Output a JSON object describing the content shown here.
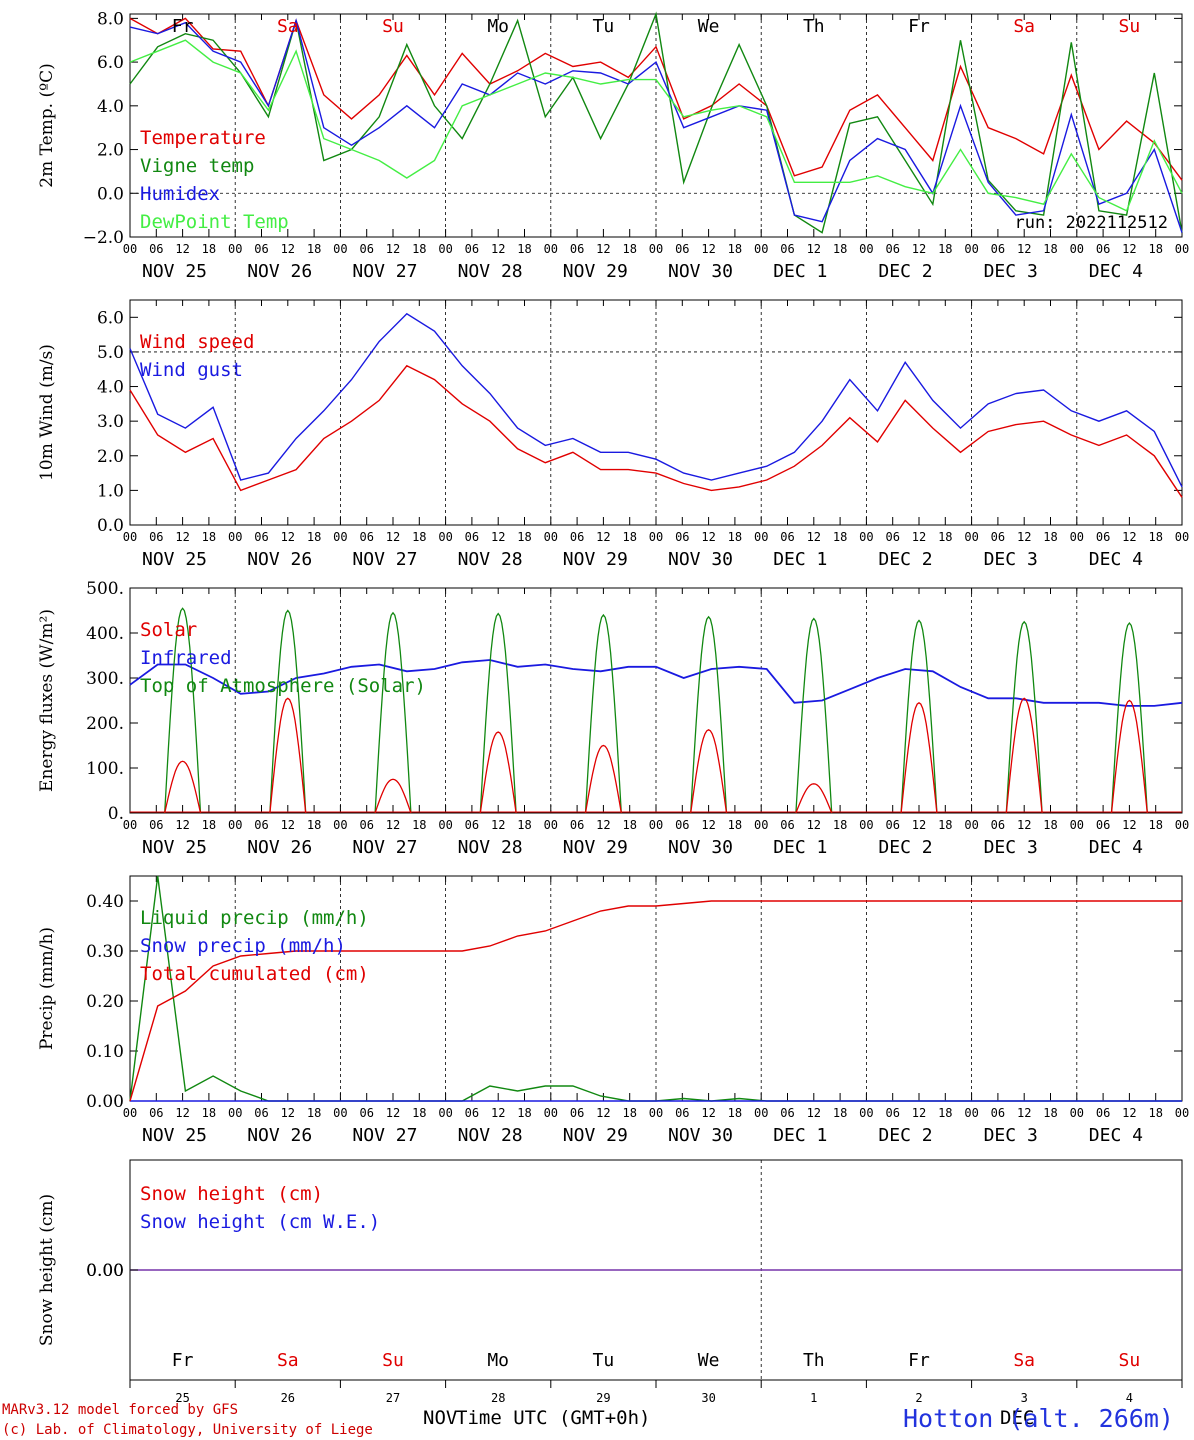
{
  "chart_data": [
    {
      "type": "line",
      "ylabel": "2m Temp. (ºC)",
      "ylim": [
        -2,
        8.2
      ],
      "yticks": [
        "8.0",
        "6.0",
        "4.0",
        "2.0",
        "0.0",
        "−2.0"
      ],
      "hline": 0,
      "weekdays": [
        "Fr",
        "Sa",
        "Su",
        "Mo",
        "Tu",
        "We",
        "Th",
        "Fr",
        "Sa",
        "Su"
      ],
      "run_label": "run: 2022112512",
      "series": [
        {
          "name": "Temperature",
          "color": "#e00000",
          "values": [
            8.0,
            7.3,
            8.0,
            6.6,
            6.5,
            4.0,
            7.9,
            4.5,
            3.4,
            4.5,
            6.3,
            4.5,
            6.4,
            5.0,
            5.6,
            6.4,
            5.8,
            6.0,
            5.3,
            6.7,
            3.4,
            4.0,
            5.0,
            4.0,
            0.8,
            1.2,
            3.8,
            4.5,
            3.0,
            1.5,
            5.8,
            3.0,
            2.5,
            1.8,
            5.4,
            2.0,
            3.3,
            2.3,
            0.6
          ]
        },
        {
          "name": "Vigne temp",
          "color": "#118811",
          "values": [
            5.0,
            6.7,
            7.3,
            7.0,
            5.5,
            3.5,
            7.9,
            1.5,
            2.0,
            3.5,
            6.8,
            4.0,
            2.5,
            5.0,
            7.9,
            3.5,
            5.3,
            2.5,
            5.0,
            8.2,
            0.5,
            3.9,
            6.8,
            4.0,
            -1.0,
            -1.8,
            3.2,
            3.5,
            1.5,
            -0.5,
            7.0,
            0.6,
            -0.8,
            -1.0,
            6.9,
            -0.8,
            -1.0,
            5.5,
            -1.8
          ]
        },
        {
          "name": "Humidex",
          "color": "#1a1ae0",
          "values": [
            7.6,
            7.3,
            7.8,
            6.5,
            6.0,
            4.0,
            7.9,
            3.0,
            2.2,
            3.0,
            4.0,
            3.0,
            5.0,
            4.5,
            5.5,
            5.0,
            5.6,
            5.5,
            5.0,
            6.0,
            3.0,
            3.5,
            4.0,
            3.8,
            -1.0,
            -1.3,
            1.5,
            2.5,
            2.0,
            0.0,
            4.0,
            0.5,
            -1.0,
            -0.8,
            3.6,
            -0.5,
            0.0,
            2.0,
            -1.8
          ]
        },
        {
          "name": "DewPoint Temp",
          "color": "#44ee44",
          "values": [
            6.0,
            6.5,
            7.0,
            6.0,
            5.5,
            3.8,
            6.5,
            2.5,
            2.0,
            1.5,
            0.7,
            1.5,
            4.0,
            4.5,
            5.0,
            5.5,
            5.3,
            5.0,
            5.2,
            5.2,
            3.5,
            3.8,
            4.0,
            3.5,
            0.5,
            0.5,
            0.5,
            0.8,
            0.3,
            0.0,
            2.0,
            0.0,
            -0.2,
            -0.5,
            1.8,
            -0.2,
            -0.8,
            2.4,
            0.0
          ]
        }
      ]
    },
    {
      "type": "line",
      "ylabel": "10m Wind (m/s)",
      "ylim": [
        0,
        6.5
      ],
      "yticks": [
        "6.0",
        "5.0",
        "4.0",
        "3.0",
        "2.0",
        "1.0",
        "0.0"
      ],
      "hline": 5,
      "series": [
        {
          "name": "Wind speed",
          "color": "#e00000",
          "values": [
            3.9,
            2.6,
            2.1,
            2.5,
            1.0,
            1.3,
            1.6,
            2.5,
            3.0,
            3.6,
            4.6,
            4.2,
            3.5,
            3.0,
            2.2,
            1.8,
            2.1,
            1.6,
            1.6,
            1.5,
            1.2,
            1.0,
            1.1,
            1.3,
            1.7,
            2.3,
            3.1,
            2.4,
            3.6,
            2.8,
            2.1,
            2.7,
            2.9,
            3.0,
            2.6,
            2.3,
            2.6,
            2.0,
            0.8
          ]
        },
        {
          "name": "Wind gust",
          "color": "#1a1ae0",
          "values": [
            5.1,
            3.2,
            2.8,
            3.4,
            1.3,
            1.5,
            2.5,
            3.3,
            4.2,
            5.3,
            6.1,
            5.6,
            4.6,
            3.8,
            2.8,
            2.3,
            2.5,
            2.1,
            2.1,
            1.9,
            1.5,
            1.3,
            1.5,
            1.7,
            2.1,
            3.0,
            4.2,
            3.3,
            4.7,
            3.6,
            2.8,
            3.5,
            3.8,
            3.9,
            3.3,
            3.0,
            3.3,
            2.7,
            1.1
          ]
        }
      ]
    },
    {
      "type": "line",
      "ylabel": "Energy fluxes (W/m²)",
      "ylim": [
        0,
        500
      ],
      "yticks": [
        "500.",
        "400.",
        "300.",
        "200.",
        "100.",
        "0."
      ],
      "series": [
        {
          "name": "Solar",
          "color": "#e00000",
          "peaks": [
            115,
            255,
            75,
            180,
            150,
            185,
            65,
            245,
            255,
            250
          ]
        },
        {
          "name": "Infrared",
          "color": "#1a1ae0",
          "values": [
            285,
            330,
            330,
            300,
            265,
            270,
            300,
            310,
            325,
            330,
            315,
            320,
            335,
            340,
            325,
            330,
            320,
            315,
            325,
            325,
            300,
            320,
            325,
            320,
            245,
            250,
            275,
            300,
            320,
            315,
            280,
            255,
            255,
            245,
            245,
            245,
            238,
            238,
            245
          ]
        },
        {
          "name": "Top of Atmosphere (Solar)",
          "color": "#118811",
          "peaks": [
            455,
            450,
            445,
            443,
            440,
            436,
            432,
            428,
            425,
            422
          ]
        }
      ]
    },
    {
      "type": "line",
      "ylabel": "Precip (mm/h)",
      "ylim": [
        0,
        0.45
      ],
      "yticks": [
        "0.40",
        "0.30",
        "0.20",
        "0.10",
        "0.00"
      ],
      "series": [
        {
          "name": "Liquid precip (mm/h)",
          "color": "#118811",
          "values": [
            0,
            0.45,
            0.02,
            0.05,
            0.02,
            0,
            0,
            0,
            0,
            0,
            0,
            0,
            0,
            0.03,
            0.02,
            0.03,
            0.03,
            0.01,
            0,
            0,
            0.005,
            0,
            0.005,
            0,
            0,
            0,
            0,
            0,
            0,
            0,
            0,
            0,
            0,
            0,
            0,
            0,
            0,
            0,
            0
          ]
        },
        {
          "name": "Snow precip (mm/h)",
          "color": "#1a1ae0",
          "values": [
            0,
            0,
            0,
            0,
            0,
            0,
            0,
            0,
            0,
            0,
            0,
            0,
            0,
            0,
            0,
            0,
            0,
            0,
            0,
            0,
            0,
            0,
            0,
            0,
            0,
            0,
            0,
            0,
            0,
            0,
            0,
            0,
            0,
            0,
            0,
            0,
            0,
            0,
            0
          ]
        },
        {
          "name": "Total cumulated (cm)",
          "color": "#e00000",
          "values": [
            0,
            0.19,
            0.22,
            0.27,
            0.29,
            0.295,
            0.3,
            0.3,
            0.3,
            0.3,
            0.3,
            0.3,
            0.3,
            0.31,
            0.33,
            0.34,
            0.36,
            0.38,
            0.39,
            0.39,
            0.395,
            0.4,
            0.4,
            0.4,
            0.4,
            0.4,
            0.4,
            0.4,
            0.4,
            0.4,
            0.4,
            0.4,
            0.4,
            0.4,
            0.4,
            0.4,
            0.4,
            0.4,
            0.4
          ]
        }
      ]
    },
    {
      "type": "line",
      "ylabel": "Snow height (cm)",
      "yticks": [
        "0.00"
      ],
      "series": [
        {
          "name": "Snow height (cm)",
          "color": "#e00000",
          "values": [
            0
          ]
        },
        {
          "name": "Snow height (cm W.E.)",
          "color": "#1a1ae0",
          "values": [
            0
          ]
        }
      ]
    }
  ],
  "x_axis": {
    "hour_labels": [
      "00",
      "06",
      "12",
      "18"
    ],
    "day_labels": [
      "NOV 25",
      "NOV 26",
      "NOV 27",
      "NOV 28",
      "NOV 29",
      "NOV 30",
      "DEC  1",
      "DEC  2",
      "DEC  3",
      "DEC  4"
    ],
    "bottom_weekdays": [
      "Fr",
      "Sa",
      "Su",
      "Mo",
      "Tu",
      "We",
      "Th",
      "Fr",
      "Sa",
      "Su"
    ],
    "bottom_day_numbers": [
      "25",
      "26",
      "27",
      "28",
      "29",
      "30",
      "1",
      "2",
      "3",
      "4"
    ],
    "month_left": "NOV",
    "month_right": "DEC",
    "xlabel": "Time UTC (GMT+0h)"
  },
  "colors": {
    "weekday": "#000000",
    "weekend": "#e00000"
  },
  "weekend_flags": [
    false,
    true,
    true,
    false,
    false,
    false,
    false,
    false,
    true,
    true
  ],
  "footer": {
    "line1": "MARv3.12 model forced by GFS",
    "line2": "(c) Lab. of Climatology, University of Liege",
    "site": "Hotton (alt. 266m)"
  }
}
